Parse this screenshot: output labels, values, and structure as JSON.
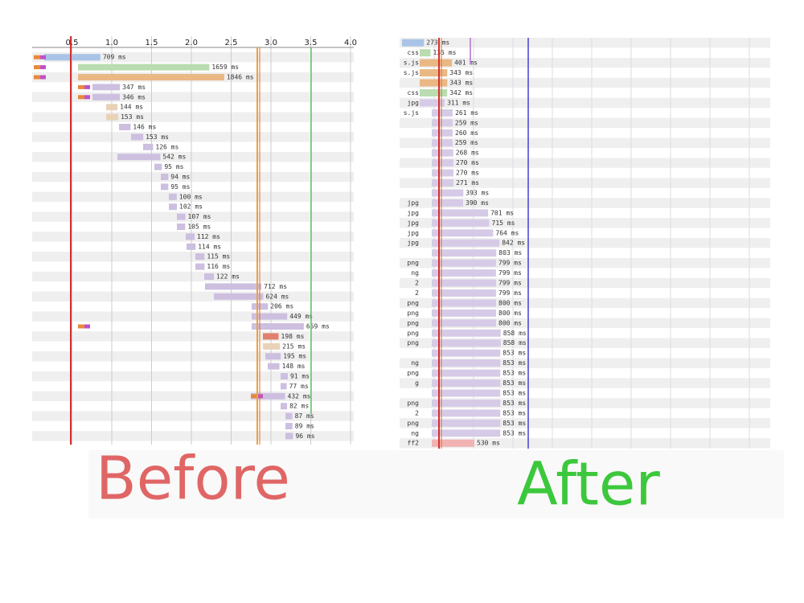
{
  "before": {
    "axis_ticks": [
      "0.5",
      "1.0",
      "1.5",
      "2.0",
      "2.5",
      "3.0",
      "3.5",
      "4.0"
    ],
    "rows": [
      {
        "duration": 709,
        "duration_label": "709 ms"
      },
      {
        "duration": 1659,
        "duration_label": "1659 ms"
      },
      {
        "duration": 1846,
        "duration_label": "1846 ms"
      },
      {
        "duration": 347,
        "duration_label": "347 ms"
      },
      {
        "duration": 346,
        "duration_label": "346 ms"
      },
      {
        "duration": 144,
        "duration_label": "144 ms"
      },
      {
        "duration": 153,
        "duration_label": "153 ms"
      },
      {
        "duration": 146,
        "duration_label": "146 ms"
      },
      {
        "duration": 153,
        "duration_label": "153 ms"
      },
      {
        "duration": 126,
        "duration_label": "126 ms"
      },
      {
        "duration": 542,
        "duration_label": "542 ms"
      },
      {
        "duration": 95,
        "duration_label": "95 ms"
      },
      {
        "duration": 94,
        "duration_label": "94 ms"
      },
      {
        "duration": 95,
        "duration_label": "95 ms"
      },
      {
        "duration": 100,
        "duration_label": "100 ms"
      },
      {
        "duration": 102,
        "duration_label": "102 ms"
      },
      {
        "duration": 107,
        "duration_label": "107 ms"
      },
      {
        "duration": 105,
        "duration_label": "105 ms"
      },
      {
        "duration": 112,
        "duration_label": "112 ms"
      },
      {
        "duration": 114,
        "duration_label": "114 ms"
      },
      {
        "duration": 115,
        "duration_label": "115 ms"
      },
      {
        "duration": 116,
        "duration_label": "116 ms"
      },
      {
        "duration": 122,
        "duration_label": "122 ms"
      },
      {
        "duration": 712,
        "duration_label": "712 ms"
      },
      {
        "duration": 624,
        "duration_label": "624 ms"
      },
      {
        "duration": 206,
        "duration_label": "206 ms"
      },
      {
        "duration": 449,
        "duration_label": "449 ms"
      },
      {
        "duration": 659,
        "duration_label": "659 ms"
      },
      {
        "duration": 198,
        "duration_label": "198 ms"
      },
      {
        "duration": 215,
        "duration_label": "215 ms"
      },
      {
        "duration": 195,
        "duration_label": "195 ms"
      },
      {
        "duration": 148,
        "duration_label": "148 ms"
      },
      {
        "duration": 91,
        "duration_label": "91 ms"
      },
      {
        "duration": 77,
        "duration_label": "77 ms"
      },
      {
        "duration": 432,
        "duration_label": "432 ms"
      },
      {
        "duration": 82,
        "duration_label": "82 ms"
      },
      {
        "duration": 87,
        "duration_label": "87 ms"
      },
      {
        "duration": 89,
        "duration_label": "89 ms"
      },
      {
        "duration": 96,
        "duration_label": "96 ms"
      }
    ]
  },
  "after": {
    "rows": [
      {
        "duration": 273,
        "duration_label": "273 ms"
      },
      {
        "file": "css",
        "duration": 135,
        "duration_label": "135 ms"
      },
      {
        "file": "s.js",
        "duration": 401,
        "duration_label": "401 ms"
      },
      {
        "file": "s.js",
        "duration": 343,
        "duration_label": "343 ms"
      },
      {
        "duration": 343,
        "duration_label": "343 ms"
      },
      {
        "file": "css",
        "duration": 342,
        "duration_label": "342 ms"
      },
      {
        "file": "jpg",
        "duration": 311,
        "duration_label": "311 ms"
      },
      {
        "file": "s.js",
        "duration": 261,
        "duration_label": "261 ms"
      },
      {
        "duration": 259,
        "duration_label": "259 ms"
      },
      {
        "duration": 260,
        "duration_label": "260 ms"
      },
      {
        "duration": 259,
        "duration_label": "259 ms"
      },
      {
        "duration": 268,
        "duration_label": "268 ms"
      },
      {
        "duration": 270,
        "duration_label": "270 ms"
      },
      {
        "duration": 270,
        "duration_label": "270 ms"
      },
      {
        "duration": 271,
        "duration_label": "271 ms"
      },
      {
        "duration": 393,
        "duration_label": "393 ms"
      },
      {
        "file": "jpg",
        "duration": 390,
        "duration_label": "390 ms"
      },
      {
        "file": "jpg",
        "duration": 701,
        "duration_label": "701 ms"
      },
      {
        "file": "jpg",
        "duration": 715,
        "duration_label": "715 ms"
      },
      {
        "file": "jpg",
        "duration": 764,
        "duration_label": "764 ms"
      },
      {
        "file": "jpg",
        "duration": 842,
        "duration_label": "842 ms"
      },
      {
        "duration": 803,
        "duration_label": "803 ms"
      },
      {
        "file": "png",
        "duration": 799,
        "duration_label": "799 ms"
      },
      {
        "file": "ng",
        "duration": 799,
        "duration_label": "799 ms"
      },
      {
        "file": "2",
        "duration": 799,
        "duration_label": "799 ms"
      },
      {
        "file": "2",
        "duration": 799,
        "duration_label": "799 ms"
      },
      {
        "file": "png",
        "duration": 800,
        "duration_label": "800 ms"
      },
      {
        "file": "png",
        "duration": 800,
        "duration_label": "800 ms"
      },
      {
        "file": "png",
        "duration": 800,
        "duration_label": "800 ms"
      },
      {
        "file": "png",
        "duration": 858,
        "duration_label": "858 ms"
      },
      {
        "file": "png",
        "duration": 858,
        "duration_label": "858 ms"
      },
      {
        "duration": 853,
        "duration_label": "853 ms"
      },
      {
        "file": "ng",
        "duration": 853,
        "duration_label": "853 ms"
      },
      {
        "file": "png",
        "duration": 853,
        "duration_label": "853 ms"
      },
      {
        "file": "g",
        "duration": 853,
        "duration_label": "853 ms"
      },
      {
        "duration": 853,
        "duration_label": "853 ms"
      },
      {
        "file": "png",
        "duration": 853,
        "duration_label": "853 ms"
      },
      {
        "file": "2",
        "duration": 853,
        "duration_label": "853 ms"
      },
      {
        "file": "png",
        "duration": 853,
        "duration_label": "853 ms"
      },
      {
        "file": "ng",
        "duration": 853,
        "duration_label": "853 ms"
      },
      {
        "file": "ff2",
        "duration": 530,
        "duration_label": "530 ms"
      }
    ]
  },
  "captions": {
    "before": "Before",
    "after": "After"
  }
}
